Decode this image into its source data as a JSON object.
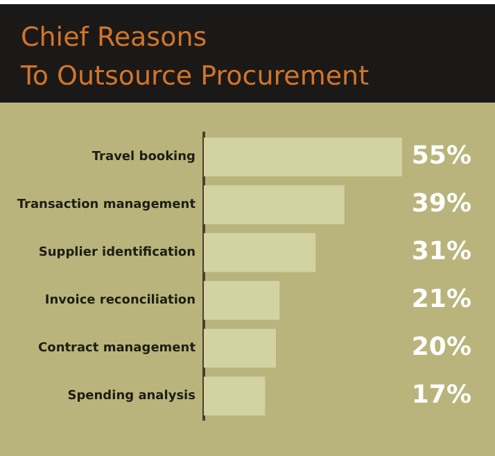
{
  "chart_data": {
    "type": "bar",
    "orientation": "horizontal",
    "title": "Chief Reasons\nTo Outsource Procurement",
    "categories": [
      "Travel booking",
      "Transaction management",
      "Supplier identification",
      "Invoice reconciliation",
      "Contract management",
      "Spending analysis"
    ],
    "values": [
      55,
      39,
      31,
      21,
      20,
      17
    ],
    "value_labels": [
      "55%",
      "39%",
      "31%",
      "21%",
      "20%",
      "17%"
    ],
    "color": "#d3d2a2",
    "legend": false
  }
}
